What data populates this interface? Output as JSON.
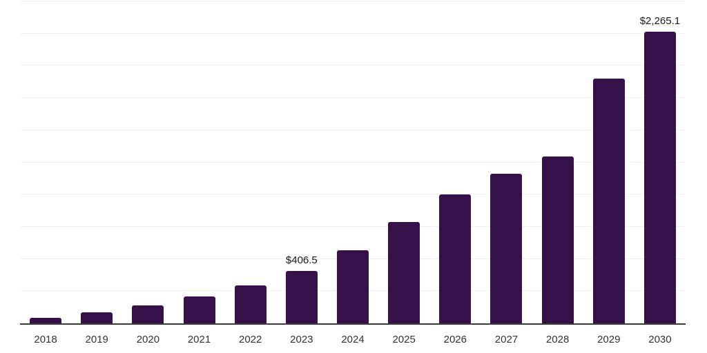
{
  "chart_data": {
    "type": "bar",
    "title": "",
    "xlabel": "",
    "ylabel": "",
    "categories": [
      "2018",
      "2019",
      "2020",
      "2021",
      "2022",
      "2023",
      "2024",
      "2025",
      "2026",
      "2027",
      "2028",
      "2029",
      "2030"
    ],
    "values": [
      45,
      85,
      140,
      210,
      295,
      406.5,
      565,
      785,
      1000,
      1160,
      1295,
      1900,
      2265.1
    ],
    "value_labels": [
      "",
      "",
      "",
      "",
      "",
      "$406.5",
      "",
      "",
      "",
      "",
      "",
      "",
      "$2,265.1"
    ],
    "ylim": [
      0,
      2500
    ],
    "gridline_interval": 250,
    "grid": "horizontal-only",
    "legend": "none",
    "colors": {
      "bar": "#351149",
      "gridline": "#f2f2f2",
      "axis_line": "#3c3c3c",
      "tick_label": "#333333",
      "data_label": "#1a1a1a",
      "background": "#ffffff"
    }
  }
}
